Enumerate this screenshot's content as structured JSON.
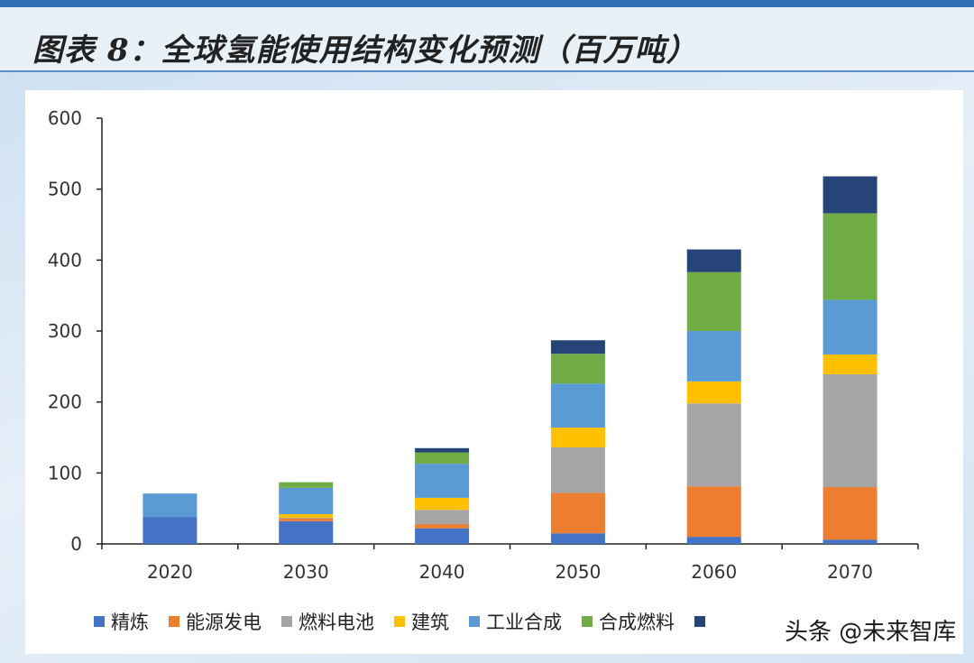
{
  "title": "图表 8：全球氢能使用结构变化预测（百万吨）",
  "watermark": "头条 @未来智库",
  "chart_data": {
    "type": "bar",
    "stacked": true,
    "categories": [
      "2020",
      "2030",
      "2040",
      "2050",
      "2060",
      "2070"
    ],
    "ylim": [
      0,
      600
    ],
    "yticks": [
      0,
      100,
      200,
      300,
      400,
      500,
      600
    ],
    "legend_position": "bottom",
    "grid": false,
    "series": [
      {
        "name": "精炼",
        "color": "#4472c4",
        "values": [
          38,
          32,
          22,
          15,
          10,
          6
        ]
      },
      {
        "name": "能源发电",
        "color": "#ed7d31",
        "values": [
          0,
          4,
          6,
          57,
          71,
          74
        ]
      },
      {
        "name": "燃料电池",
        "color": "#a5a5a5",
        "values": [
          0,
          1,
          20,
          64,
          117,
          159
        ]
      },
      {
        "name": "建筑",
        "color": "#ffc000",
        "values": [
          0,
          5,
          17,
          28,
          31,
          28
        ]
      },
      {
        "name": "工业合成",
        "color": "#5b9bd5",
        "values": [
          33,
          37,
          48,
          62,
          71,
          77
        ]
      },
      {
        "name": "合成燃料",
        "color": "#70ad47",
        "values": [
          0,
          8,
          16,
          42,
          83,
          122
        ]
      },
      {
        "name": "",
        "color": "#264478",
        "values": [
          0,
          0,
          6,
          19,
          32,
          52
        ]
      }
    ]
  }
}
